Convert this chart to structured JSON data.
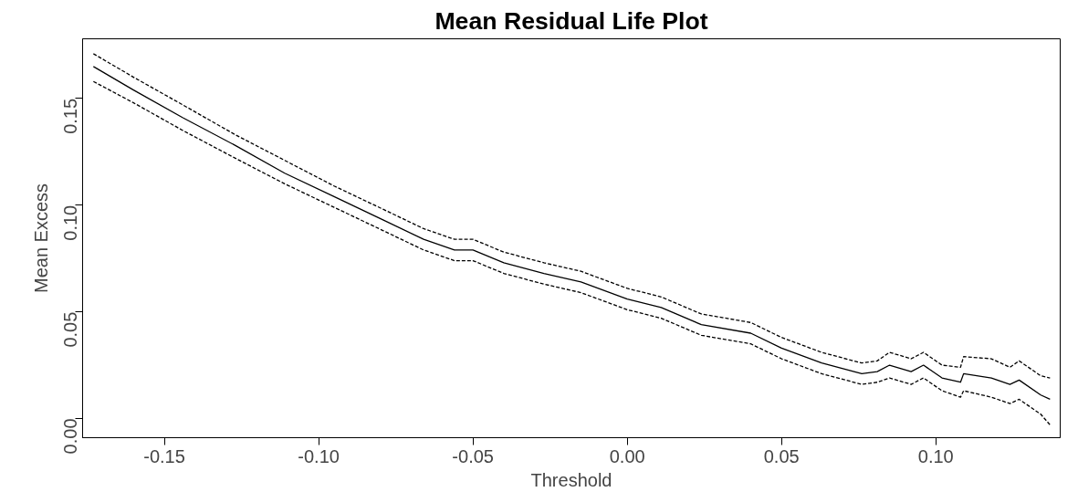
{
  "chart_data": {
    "type": "line",
    "title": "Mean Residual Life Plot",
    "xlabel": "Threshold",
    "ylabel": "Mean Excess",
    "x": [
      -0.173,
      -0.16,
      -0.144,
      -0.127,
      -0.111,
      -0.095,
      -0.079,
      -0.066,
      -0.056,
      -0.05,
      -0.04,
      -0.027,
      -0.015,
      0.0,
      0.011,
      0.024,
      0.04,
      0.05,
      0.063,
      0.076,
      0.081,
      0.085,
      0.092,
      0.096,
      0.102,
      0.108,
      0.109,
      0.118,
      0.124,
      0.127,
      0.134,
      0.137
    ],
    "series": [
      {
        "color": "#000000",
        "line_style": "dashed",
        "values": [
          0.171,
          0.16,
          0.147,
          0.133,
          0.121,
          0.109,
          0.098,
          0.089,
          0.084,
          0.084,
          0.078,
          0.073,
          0.069,
          0.061,
          0.057,
          0.049,
          0.045,
          0.038,
          0.031,
          0.026,
          0.027,
          0.031,
          0.028,
          0.031,
          0.025,
          0.024,
          0.029,
          0.028,
          0.024,
          0.027,
          0.02,
          0.019
        ]
      },
      {
        "color": "#000000",
        "line_style": "solid",
        "values": [
          0.165,
          0.154,
          0.141,
          0.128,
          0.115,
          0.104,
          0.093,
          0.084,
          0.079,
          0.079,
          0.073,
          0.068,
          0.064,
          0.056,
          0.052,
          0.044,
          0.04,
          0.033,
          0.026,
          0.021,
          0.022,
          0.025,
          0.022,
          0.025,
          0.019,
          0.017,
          0.021,
          0.019,
          0.016,
          0.018,
          0.011,
          0.009
        ]
      },
      {
        "color": "#000000",
        "line_style": "dashed",
        "values": [
          0.158,
          0.148,
          0.135,
          0.122,
          0.11,
          0.099,
          0.088,
          0.079,
          0.074,
          0.074,
          0.068,
          0.063,
          0.059,
          0.051,
          0.047,
          0.039,
          0.035,
          0.028,
          0.021,
          0.016,
          0.017,
          0.019,
          0.016,
          0.019,
          0.013,
          0.01,
          0.013,
          0.01,
          0.007,
          0.009,
          0.002,
          -0.003
        ]
      }
    ],
    "xlim": [
      -0.1765,
      0.1403
    ],
    "ylim": [
      -0.009,
      0.178
    ],
    "xticks": [
      {
        "value": -0.15,
        "label": "-0.15"
      },
      {
        "value": -0.1,
        "label": "-0.10"
      },
      {
        "value": -0.05,
        "label": "-0.05"
      },
      {
        "value": 0,
        "label": "0.00"
      },
      {
        "value": 0.05,
        "label": "0.05"
      },
      {
        "value": 0.1,
        "label": "0.10"
      }
    ],
    "yticks": [
      {
        "value": 0,
        "label": "0.00"
      },
      {
        "value": 0.05,
        "label": "0.05"
      },
      {
        "value": 0.1,
        "label": "0.10"
      },
      {
        "value": 0.15,
        "label": "0.15"
      }
    ],
    "grid": false
  }
}
